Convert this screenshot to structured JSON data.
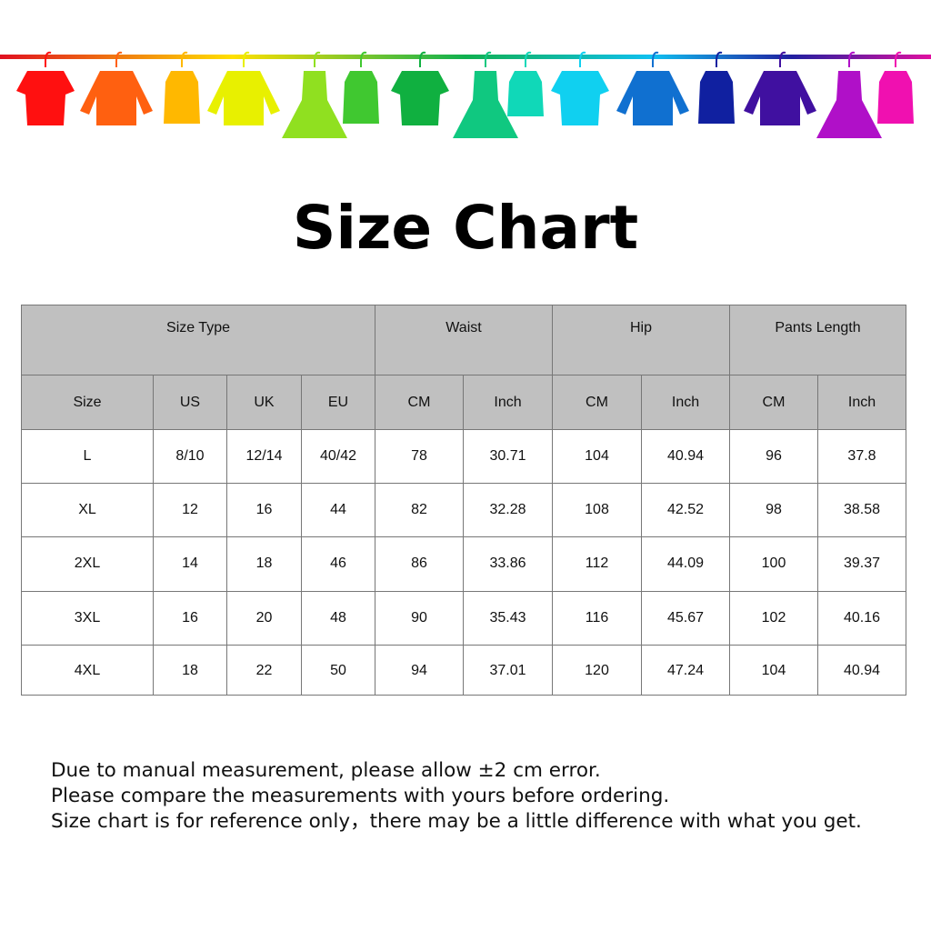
{
  "banner": {
    "icon": "hanging-clothes-rainbow",
    "colors": [
      "#ff1010",
      "#ff6010",
      "#ffb800",
      "#e8f000",
      "#90e020",
      "#40c830",
      "#10b040",
      "#10c880",
      "#10d8b8",
      "#10d0f0",
      "#1070d0",
      "#1020a0",
      "#4010a0",
      "#b010c8",
      "#f010b0"
    ]
  },
  "title": "Size Chart",
  "table": {
    "header_bg": "#c0c0c0",
    "groups": [
      "Size Type",
      "Waist",
      "Hip",
      "Pants Length"
    ],
    "columns": [
      "Size",
      "US",
      "UK",
      "EU",
      "CM",
      "Inch",
      "CM",
      "Inch",
      "CM",
      "Inch"
    ],
    "rows": [
      [
        "L",
        "8/10",
        "12/14",
        "40/42",
        "78",
        "30.71",
        "104",
        "40.94",
        "96",
        "37.8"
      ],
      [
        "XL",
        "12",
        "16",
        "44",
        "82",
        "32.28",
        "108",
        "42.52",
        "98",
        "38.58"
      ],
      [
        "2XL",
        "14",
        "18",
        "46",
        "86",
        "33.86",
        "112",
        "44.09",
        "100",
        "39.37"
      ],
      [
        "3XL",
        "16",
        "20",
        "48",
        "90",
        "35.43",
        "116",
        "45.67",
        "102",
        "40.16"
      ],
      [
        "4XL",
        "18",
        "22",
        "50",
        "94",
        "37.01",
        "120",
        "47.24",
        "104",
        "40.94"
      ]
    ]
  },
  "notes": [
    "Due to manual measurement, please allow ±2 cm error.",
    "Please compare the measurements with yours before ordering.",
    "Size chart is for reference only，there may be a little difference with what you get."
  ]
}
